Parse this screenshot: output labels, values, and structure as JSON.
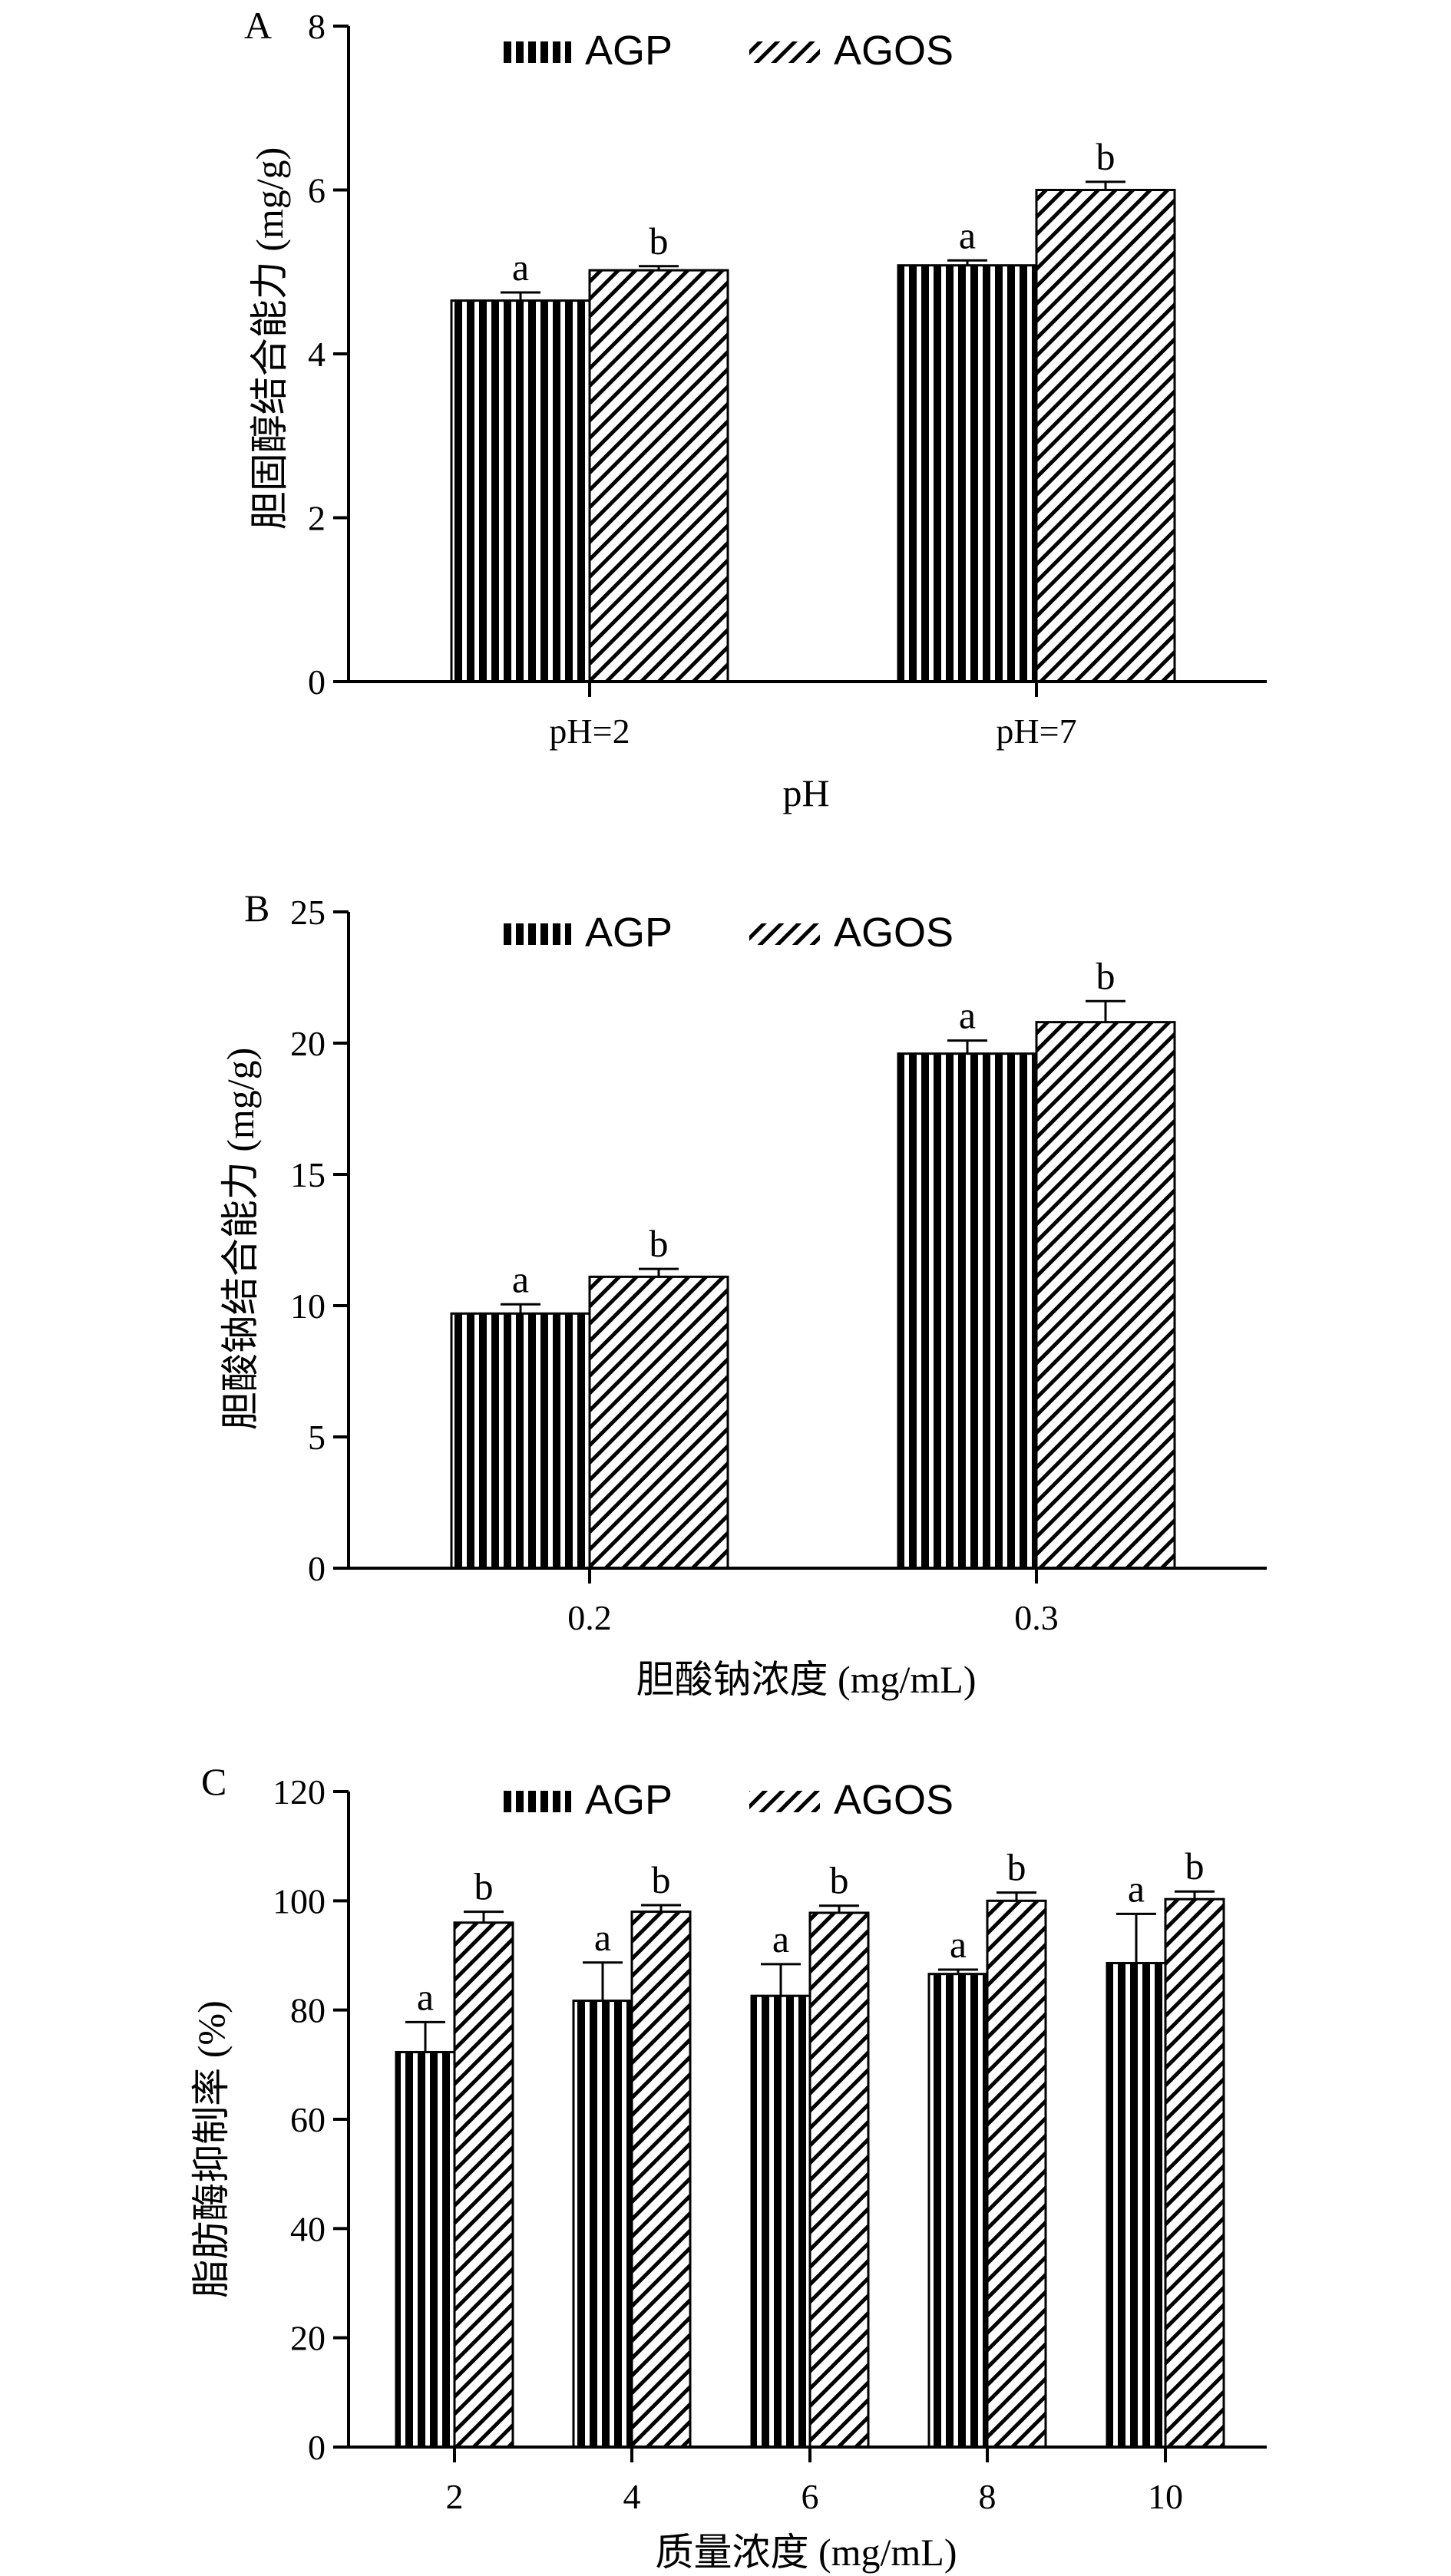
{
  "chart_data": [
    {
      "type": "bar",
      "panel_label": "A",
      "categories": [
        "pH=2",
        "pH=7"
      ],
      "series": [
        {
          "name": "AGP",
          "values": [
            4.65,
            5.08
          ],
          "errors": [
            0.1,
            0.06
          ],
          "letters": [
            "a",
            "a"
          ],
          "pattern": "vertical-lines"
        },
        {
          "name": "AGOS",
          "values": [
            5.02,
            6.0
          ],
          "errors": [
            0.05,
            0.1
          ],
          "letters": [
            "b",
            "b"
          ],
          "pattern": "diagonal-lines"
        }
      ],
      "xlabel": "pH",
      "ylabel": "胆固醇结合能力 (mg/g)",
      "ylim": [
        0,
        8
      ],
      "yticks": [
        "0",
        "2",
        "4",
        "6",
        "8"
      ],
      "grid": false,
      "legend_position": "top-center"
    },
    {
      "type": "bar",
      "panel_label": "B",
      "categories": [
        "0.2",
        "0.3"
      ],
      "series": [
        {
          "name": "AGP",
          "values": [
            9.7,
            19.6
          ],
          "errors": [
            0.35,
            0.5
          ],
          "letters": [
            "a",
            "a"
          ],
          "pattern": "vertical-lines"
        },
        {
          "name": "AGOS",
          "values": [
            11.1,
            20.8
          ],
          "errors": [
            0.3,
            0.8
          ],
          "letters": [
            "b",
            "b"
          ],
          "pattern": "diagonal-lines"
        }
      ],
      "xlabel": "胆酸钠浓度 (mg/mL)",
      "ylabel": "胆酸钠结合能力 (mg/g)",
      "ylim": [
        0,
        25
      ],
      "yticks": [
        "0",
        "5",
        "10",
        "15",
        "20",
        "25"
      ],
      "grid": false,
      "legend_position": "top-center"
    },
    {
      "type": "bar",
      "panel_label": "C",
      "categories": [
        "2",
        "4",
        "6",
        "8",
        "10"
      ],
      "series": [
        {
          "name": "AGP",
          "values": [
            72.3,
            81.7,
            82.6,
            86.6,
            88.6
          ],
          "errors": [
            5.5,
            7.0,
            5.8,
            0.8,
            9.0
          ],
          "letters": [
            "a",
            "a",
            "a",
            "a",
            "a"
          ],
          "pattern": "vertical-lines"
        },
        {
          "name": "AGOS",
          "values": [
            96.0,
            98.0,
            97.8,
            100.0,
            100.3
          ],
          "errors": [
            2.0,
            1.2,
            1.3,
            1.5,
            1.4
          ],
          "letters": [
            "b",
            "b",
            "b",
            "b",
            "b"
          ],
          "pattern": "diagonal-lines"
        }
      ],
      "xlabel": "质量浓度 (mg/mL)",
      "ylabel": "脂肪酶抑制率 (%)",
      "ylim": [
        0,
        120
      ],
      "yticks": [
        "0",
        "20",
        "40",
        "60",
        "80",
        "100",
        "120"
      ],
      "grid": false,
      "legend_position": "top-center"
    }
  ]
}
